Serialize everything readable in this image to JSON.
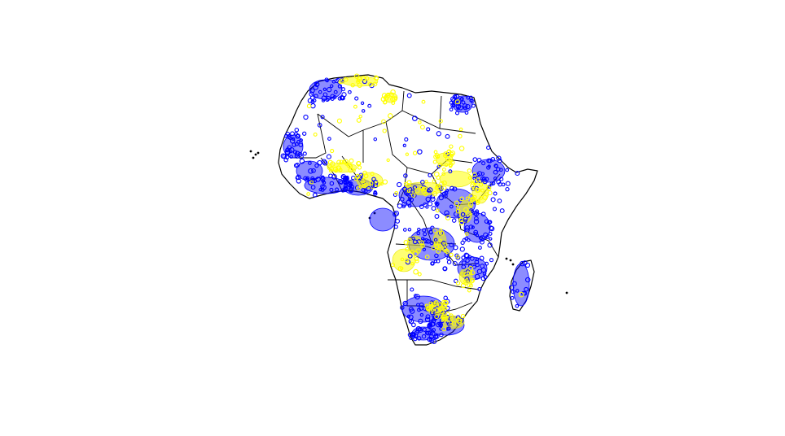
{
  "map": {
    "region": "Africa",
    "background_color": "#ffffff",
    "outline_color": "#000000",
    "marker_style": "hollow circles",
    "series": [
      {
        "color": "#0000ff"
      },
      {
        "color": "#ffff00"
      }
    ]
  }
}
